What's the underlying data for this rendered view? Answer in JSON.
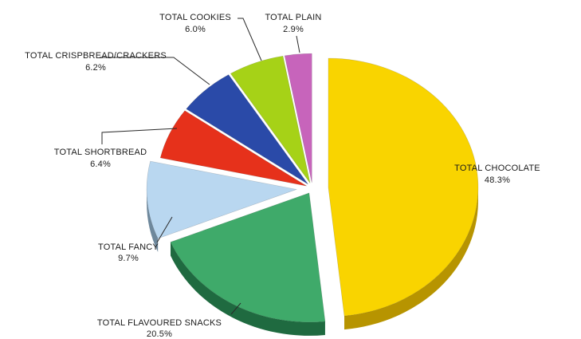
{
  "chart_data": {
    "type": "pie",
    "title": "",
    "slices": [
      {
        "label": "TOTAL CHOCOLATE",
        "value_label": "48.3%",
        "value": 48.3,
        "color": "#f9d400",
        "side": "#b79400"
      },
      {
        "label": "TOTAL FLAVOURED SNACKS",
        "value_label": "20.5%",
        "value": 20.5,
        "color": "#3faa6a",
        "side": "#1f6a40"
      },
      {
        "label": "TOTAL FANCY",
        "value_label": "9.7%",
        "value": 9.7,
        "color": "#b9d7f0",
        "side": "#6e889c"
      },
      {
        "label": "TOTAL SHORTBREAD",
        "value_label": "6.4%",
        "value": 6.4,
        "color": "#e6311b",
        "side": "#8a1608"
      },
      {
        "label": "TOTAL CRISPBREAD/CRACKERS",
        "value_label": "6.2%",
        "value": 6.2,
        "color": "#2a4aa8",
        "side": "#142a66"
      },
      {
        "label": "TOTAL COOKIES",
        "value_label": "6.0%",
        "value": 6.0,
        "color": "#a6d217",
        "side": "#5f7f0a"
      },
      {
        "label": "TOTAL PLAIN",
        "value_label": "2.9%",
        "value": 2.9,
        "color": "#c764bb",
        "side": "#7a3270"
      }
    ],
    "legend": "none"
  }
}
